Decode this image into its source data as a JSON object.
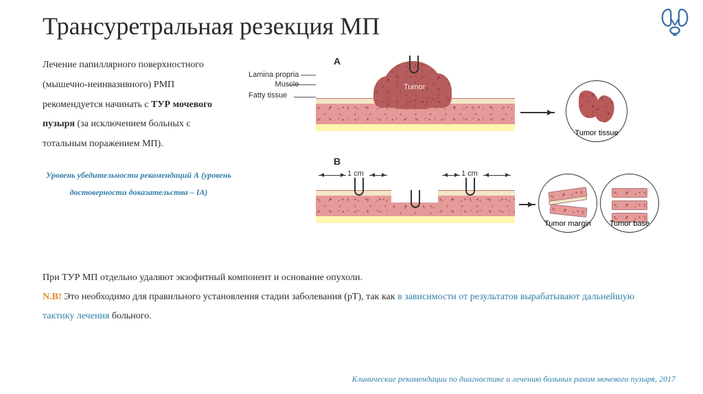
{
  "title": "Трансуретральная резекция МП",
  "title_fontsize": 36,
  "logo_color": "#3a6fa8",
  "body": {
    "text_html": "Лечение папиллярного поверхностного (мышечно-неинвазивного) РМП рекомендуется начинать с <b>ТУР мочевого пузыря</b> (за исключением больных с тотальным поражением МП).",
    "fontsize": 14,
    "color": "#2b2b2b"
  },
  "evidence": {
    "text": "Уровень убедительности рекомендаций А (уровень достоверности доказательства – IA)",
    "color": "#2f7fa9",
    "fontsize": 12
  },
  "diagram": {
    "panel_a_label": "A",
    "panel_b_label": "B",
    "panel_label_fontsize": 14,
    "layer_labels": {
      "lamina": "Lamina propria",
      "muscle": "Muscle",
      "fat": "Fatty tissue",
      "fontsize": 11
    },
    "layer_colors": {
      "lamina": "#f4e7c6",
      "muscle": "#e59a9a",
      "fat": "#fff7b0",
      "muscle_speckle": "#b85b5b",
      "outline": "#b77777"
    },
    "tumor": {
      "label": "Tumor",
      "color": "#b85a5a",
      "dark": "#8f3d3d"
    },
    "samples": {
      "a": {
        "label": "Tumor tissue",
        "label_fontsize": 11
      },
      "b_left": {
        "label": "Tumor margin",
        "label_fontsize": 11
      },
      "b_right": {
        "label": "Tumor base",
        "label_fontsize": 11
      }
    },
    "measurements": {
      "one_cm": "1 cm",
      "fontsize": 11
    },
    "arrow_color": "#333333"
  },
  "bottom": {
    "line1": "При ТУР МП отдельно удаляют экзофитный компонент и основание опухоли.",
    "fontsize": 14,
    "nb_prefix": "N.B!",
    "nb_color": "#e08a2b",
    "line2_a": " Это необходимо для правильного установления стадии заболевания (pT), так как ",
    "line2_b": "в зависимости от результатов вырабатывают дальнейшую тактику лечения",
    "line2_c": " больного.",
    "highlight_color": "#2f7fa9"
  },
  "citation": {
    "text": "Клинические рекомендации по диагностике и лечению больных раком мочевого пузыря, 2017",
    "color": "#2f7fa9",
    "fontsize": 12
  }
}
